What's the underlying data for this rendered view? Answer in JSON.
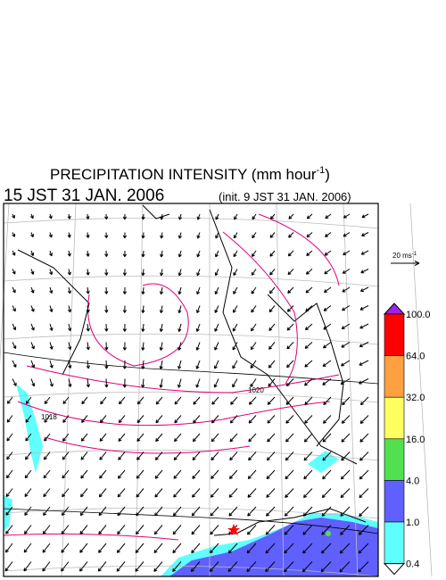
{
  "header": {
    "title": {
      "main": "PRECIPITATION INTENSITY (mm hour",
      "sup": "-1",
      "end": ")"
    },
    "time": "15 JST 31 JAN. 2006",
    "init": "(init. 9 JST 31 JAN. 2006)"
  },
  "scale_arrow": {
    "label": "20 ms",
    "sup": "-1"
  },
  "contour_labels": [
    "1020",
    "1018"
  ],
  "legend": {
    "levels": [
      "100.0",
      "64.0",
      "32.0",
      "16.0",
      "4.0",
      "1.0",
      "0.4"
    ],
    "colors": [
      "#a020f0",
      "#ff0000",
      "#ffa040",
      "#ffff60",
      "#50e050",
      "#6060ff",
      "#60ffff",
      "#ffffff"
    ]
  }
}
